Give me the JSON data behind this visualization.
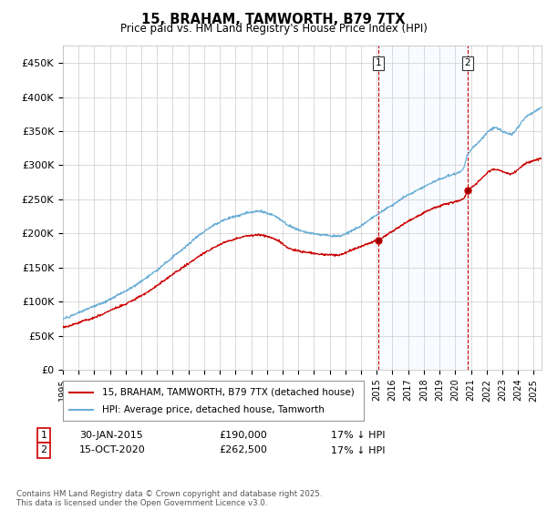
{
  "title": "15, BRAHAM, TAMWORTH, B79 7TX",
  "subtitle": "Price paid vs. HM Land Registry's House Price Index (HPI)",
  "ylabel_vals": [
    "£0",
    "£50K",
    "£100K",
    "£150K",
    "£200K",
    "£250K",
    "£300K",
    "£350K",
    "£400K",
    "£450K"
  ],
  "yticks": [
    0,
    50000,
    100000,
    150000,
    200000,
    250000,
    300000,
    350000,
    400000,
    450000
  ],
  "ylim": [
    0,
    475000
  ],
  "xlim_start": 1995.0,
  "xlim_end": 2025.5,
  "purchase1_x": 2015.08,
  "purchase1_y": 190000,
  "purchase2_x": 2020.79,
  "purchase2_y": 262500,
  "legend_line1": "15, BRAHAM, TAMWORTH, B79 7TX (detached house)",
  "legend_line2": "HPI: Average price, detached house, Tamworth",
  "footer": "Contains HM Land Registry data © Crown copyright and database right 2025.\nThis data is licensed under the Open Government Licence v3.0.",
  "hpi_color": "#6baed6",
  "price_color": "#cc0000",
  "shade_color": "#ddeeff",
  "vline_color": "#cc0000",
  "background_color": "#ffffff",
  "grid_color": "#cccccc",
  "fig_width": 6.0,
  "fig_height": 5.6,
  "dpi": 100
}
